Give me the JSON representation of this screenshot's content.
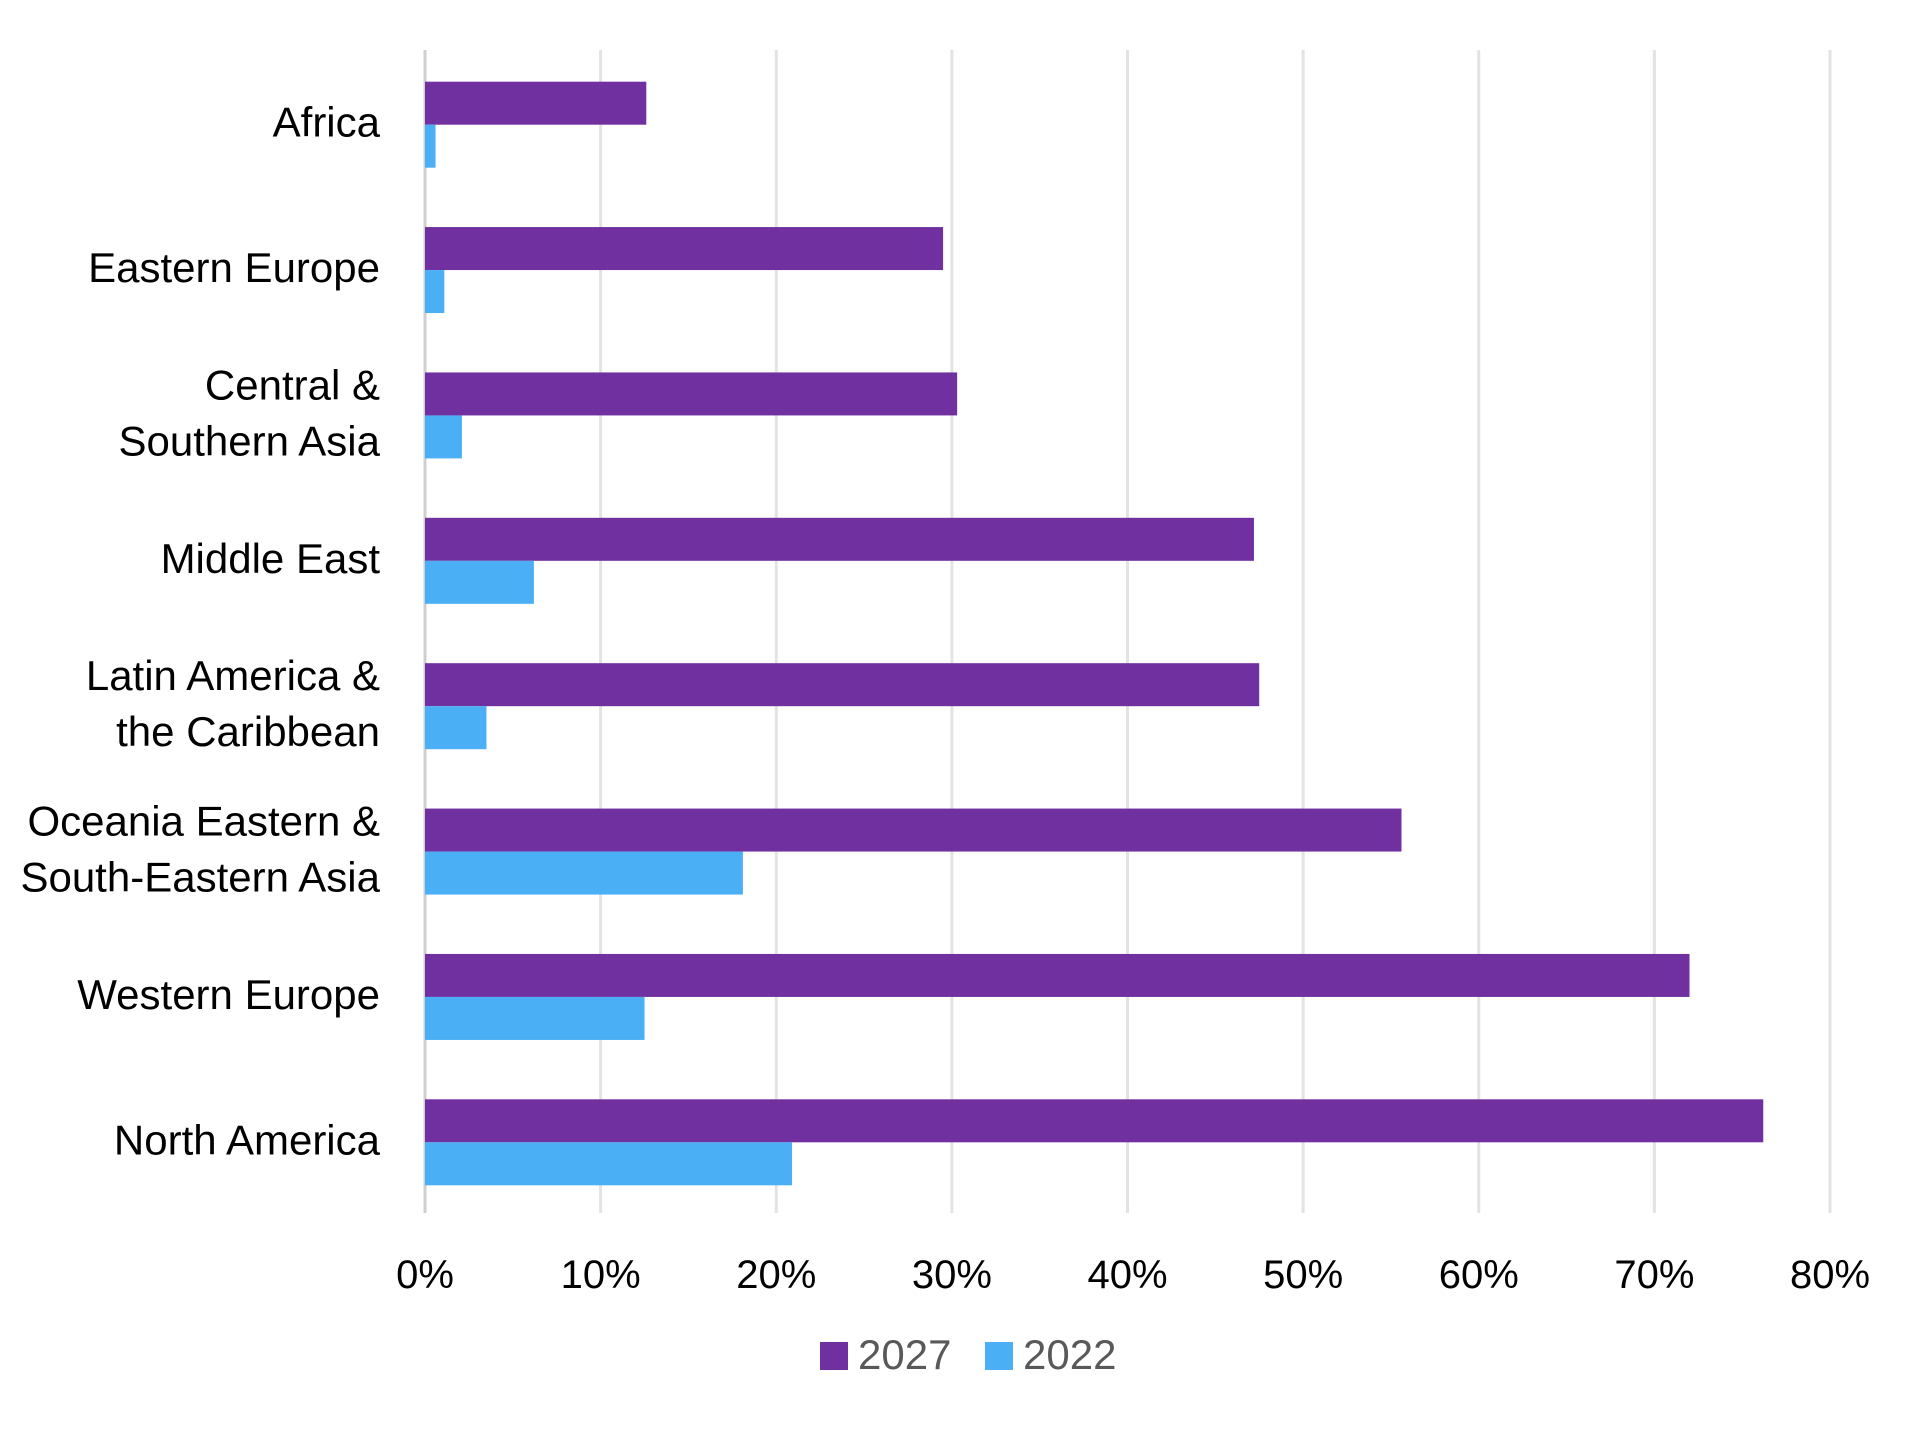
{
  "chart_data": {
    "type": "bar",
    "orientation": "horizontal",
    "title": "",
    "xlabel": "",
    "ylabel": "",
    "categories": [
      [
        "Africa"
      ],
      [
        "Eastern Europe"
      ],
      [
        "Central &",
        "Southern Asia"
      ],
      [
        "Middle East"
      ],
      [
        "Latin America &",
        "the Caribbean"
      ],
      [
        "Oceania Eastern &",
        "South-Eastern Asia"
      ],
      [
        "Western Europe"
      ],
      [
        "North America"
      ]
    ],
    "series": [
      {
        "name": "2027",
        "color": "#7030a0",
        "values": [
          12.6,
          29.5,
          30.3,
          47.2,
          47.5,
          55.6,
          72.0,
          76.2
        ]
      },
      {
        "name": "2022",
        "color": "#4aaff5",
        "values": [
          0.6,
          1.1,
          2.1,
          6.2,
          3.5,
          18.1,
          12.5,
          20.9
        ]
      }
    ],
    "xlim": [
      0,
      80
    ],
    "xticks": [
      "0%",
      "10%",
      "20%",
      "30%",
      "40%",
      "50%",
      "60%",
      "70%",
      "80%"
    ],
    "grid": "vertical",
    "legend_position": "bottom"
  }
}
